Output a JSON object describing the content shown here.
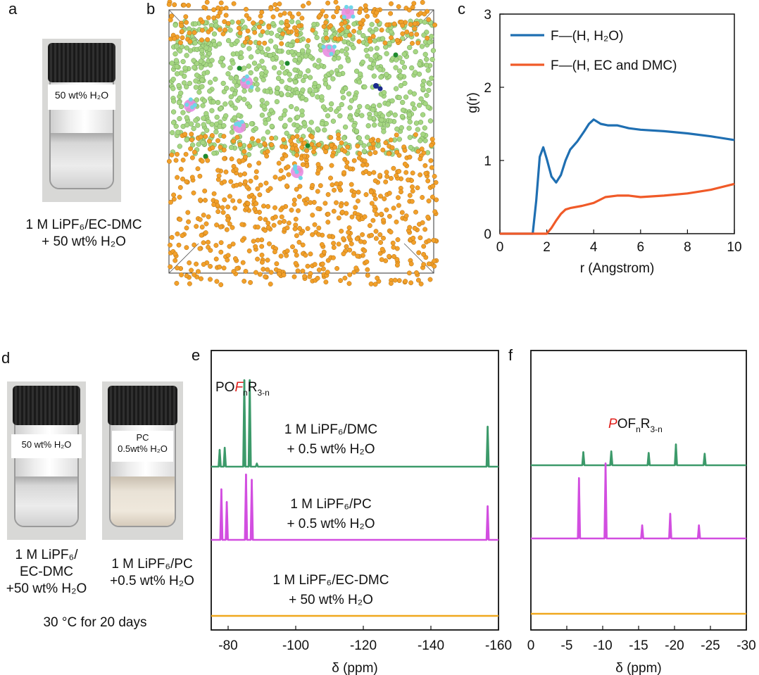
{
  "panels": {
    "a": {
      "label": "a",
      "vial_tag": "50 wt% H₂O",
      "caption_line1": "1 M LiPF₆/EC-DMC",
      "caption_line2": "+ 50 wt% H₂O"
    },
    "b": {
      "label": "b"
    },
    "c": {
      "label": "c"
    },
    "d": {
      "label": "d",
      "vial1_tag": "50 wt% H₂O",
      "vial2_tag_line1": "PC",
      "vial2_tag_line2": "0.5wt% H₂O",
      "caption1_line1": "1 M LiPF₆/",
      "caption1_line2": "EC-DMC",
      "caption1_line3": "+50 wt% H₂O",
      "caption2_line1": "1 M LiPF₆/PC",
      "caption2_line2": "+0.5 wt% H₂O",
      "footer": "30 °C for 20 days"
    },
    "e": {
      "label": "e"
    },
    "f": {
      "label": "f"
    }
  },
  "colors": {
    "blue": "#1f6fb2",
    "orange": "#f05a28",
    "green": "#3c9a6a",
    "magenta": "#d24ee0",
    "gold": "#f0a81e",
    "md_green": "#a6d783",
    "md_orange": "#f2a02a",
    "md_pink": "#e88de0",
    "md_cyan": "#6fd6e8"
  },
  "chart_data": [
    {
      "id": "c",
      "type": "line",
      "xlabel": "r (Angstrom)",
      "ylabel": "g(r)",
      "xlim": [
        0,
        10
      ],
      "ylim": [
        0,
        3
      ],
      "xticks": [
        0,
        2,
        4,
        6,
        8,
        10
      ],
      "yticks": [
        0,
        1,
        2,
        3
      ],
      "legend": "top-left",
      "series": [
        {
          "name": "F—(H, H₂O)",
          "color": "#1f6fb2",
          "x": [
            0,
            1.4,
            1.55,
            1.7,
            1.85,
            2.0,
            2.2,
            2.4,
            2.6,
            2.8,
            3.0,
            3.3,
            3.6,
            3.8,
            4.0,
            4.3,
            4.6,
            5.0,
            5.5,
            6.0,
            7.0,
            8.0,
            9.0,
            10.0
          ],
          "y": [
            0,
            0,
            0.45,
            1.05,
            1.18,
            1.02,
            0.78,
            0.7,
            0.8,
            1.0,
            1.15,
            1.26,
            1.4,
            1.5,
            1.56,
            1.5,
            1.48,
            1.48,
            1.44,
            1.42,
            1.4,
            1.37,
            1.33,
            1.28
          ]
        },
        {
          "name": "F—(H, EC and DMC)",
          "color": "#f05a28",
          "x": [
            0,
            2.0,
            2.2,
            2.4,
            2.6,
            2.8,
            3.0,
            3.5,
            4.0,
            4.5,
            5.0,
            5.5,
            6.0,
            7.0,
            8.0,
            9.0,
            10.0
          ],
          "y": [
            0,
            0,
            0.08,
            0.18,
            0.27,
            0.33,
            0.35,
            0.38,
            0.42,
            0.5,
            0.52,
            0.52,
            0.5,
            0.52,
            0.55,
            0.6,
            0.68
          ]
        }
      ]
    },
    {
      "id": "e",
      "type": "line",
      "xlabel": "δ  (ppm)",
      "xlim": [
        -75,
        -160
      ],
      "xticks": [
        -80,
        -100,
        -120,
        -140,
        -160
      ],
      "annotation": {
        "pre": "PO",
        "red": "F",
        "sub1": "n",
        "mid": "R",
        "sub2": "3-n"
      },
      "series": [
        {
          "label_line1": "1 M LiPF₆/DMC",
          "label_line2": "+ 0.5 wt% H₂O",
          "color": "#3c9a6a",
          "peaks": [
            {
              "x": -77.5,
              "h": 0.16
            },
            {
              "x": -79.0,
              "h": 0.18
            },
            {
              "x": -84.8,
              "h": 0.82
            },
            {
              "x": -86.4,
              "h": 0.82
            },
            {
              "x": -88.5,
              "h": 0.03
            },
            {
              "x": -156.8,
              "h": 0.38
            }
          ]
        },
        {
          "label_line1": "1 M LiPF₆/PC",
          "label_line2": "+ 0.5 wt% H₂O",
          "color": "#d24ee0",
          "peaks": [
            {
              "x": -78.0,
              "h": 0.48
            },
            {
              "x": -79.6,
              "h": 0.36
            },
            {
              "x": -85.3,
              "h": 0.62
            },
            {
              "x": -87.0,
              "h": 0.57
            },
            {
              "x": -156.8,
              "h": 0.32
            }
          ]
        },
        {
          "label_line1": "1 M LiPF₆/EC-DMC",
          "label_line2": "+ 50 wt% H₂O",
          "color": "#f0a81e",
          "peaks": []
        }
      ]
    },
    {
      "id": "f",
      "type": "line",
      "xlabel": "δ  (ppm)",
      "xlim": [
        0,
        -30
      ],
      "xticks": [
        0,
        -5,
        -10,
        -15,
        -20,
        -25,
        -30
      ],
      "annotation": {
        "red": "P",
        "pre": "OF",
        "sub1": "n",
        "mid": "R",
        "sub2": "3-n"
      },
      "series": [
        {
          "color": "#3c9a6a",
          "peaks": [
            {
              "x": -7.3,
              "h": 0.17
            },
            {
              "x": -11.2,
              "h": 0.18
            },
            {
              "x": -16.4,
              "h": 0.16
            },
            {
              "x": -20.2,
              "h": 0.27
            },
            {
              "x": -24.2,
              "h": 0.15
            }
          ]
        },
        {
          "color": "#d24ee0",
          "peaks": [
            {
              "x": -6.7,
              "h": 0.78
            },
            {
              "x": -10.4,
              "h": 0.97
            },
            {
              "x": -15.5,
              "h": 0.17
            },
            {
              "x": -19.4,
              "h": 0.32
            },
            {
              "x": -23.4,
              "h": 0.17
            }
          ]
        },
        {
          "color": "#f0a81e",
          "peaks": []
        }
      ]
    }
  ]
}
